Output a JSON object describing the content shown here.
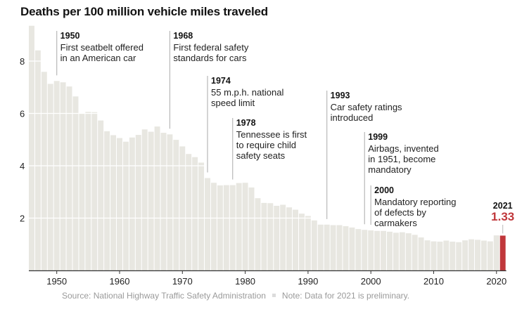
{
  "chart_data": {
    "type": "bar",
    "title": "Deaths per 100 million vehicle miles traveled",
    "xlabel": "",
    "ylabel": "",
    "ylim": [
      0,
      9.35
    ],
    "yticks": [
      2,
      4,
      6,
      8
    ],
    "xticks": [
      1950,
      1960,
      1970,
      1980,
      1990,
      2000,
      2010,
      2020
    ],
    "grid": true,
    "categories": [
      1946,
      1947,
      1948,
      1949,
      1950,
      1951,
      1952,
      1953,
      1954,
      1955,
      1956,
      1957,
      1958,
      1959,
      1960,
      1961,
      1962,
      1963,
      1964,
      1965,
      1966,
      1967,
      1968,
      1969,
      1970,
      1971,
      1972,
      1973,
      1974,
      1975,
      1976,
      1977,
      1978,
      1979,
      1980,
      1981,
      1982,
      1983,
      1984,
      1985,
      1986,
      1987,
      1988,
      1989,
      1990,
      1991,
      1992,
      1993,
      1994,
      1995,
      1996,
      1997,
      1998,
      1999,
      2000,
      2001,
      2002,
      2003,
      2004,
      2005,
      2006,
      2007,
      2008,
      2009,
      2010,
      2011,
      2012,
      2013,
      2014,
      2015,
      2016,
      2017,
      2018,
      2019,
      2020,
      2021
    ],
    "values": [
      9.35,
      8.41,
      7.59,
      7.13,
      7.24,
      7.19,
      7.03,
      6.65,
      6.01,
      6.06,
      6.05,
      5.73,
      5.32,
      5.17,
      5.06,
      4.92,
      5.08,
      5.18,
      5.39,
      5.3,
      5.5,
      5.26,
      5.2,
      4.99,
      4.74,
      4.45,
      4.33,
      4.12,
      3.53,
      3.35,
      3.25,
      3.26,
      3.26,
      3.34,
      3.35,
      3.17,
      2.76,
      2.58,
      2.57,
      2.47,
      2.51,
      2.41,
      2.32,
      2.17,
      2.08,
      1.91,
      1.75,
      1.75,
      1.73,
      1.73,
      1.69,
      1.64,
      1.58,
      1.55,
      1.53,
      1.51,
      1.51,
      1.48,
      1.44,
      1.46,
      1.42,
      1.36,
      1.26,
      1.15,
      1.11,
      1.1,
      1.14,
      1.1,
      1.08,
      1.15,
      1.19,
      1.17,
      1.14,
      1.11,
      1.34,
      1.33
    ],
    "highlight": {
      "year": "2021",
      "value": "1.33",
      "color": "#c0373b"
    },
    "bar_color": "#e8e7e1",
    "annotations": [
      {
        "year": 1950,
        "label": "1950",
        "lines": [
          "First seatbelt offered",
          "in an American car"
        ]
      },
      {
        "year": 1968,
        "label": "1968",
        "lines": [
          "First federal safety",
          "standards for cars"
        ]
      },
      {
        "year": 1974,
        "label": "1974",
        "lines": [
          "55 m.p.h. national",
          "speed limit"
        ]
      },
      {
        "year": 1978,
        "label": "1978",
        "lines": [
          "Tennessee is first",
          "to require child",
          "safety seats"
        ]
      },
      {
        "year": 1993,
        "label": "1993",
        "lines": [
          "Car safety ratings",
          "introduced"
        ]
      },
      {
        "year": 1999,
        "label": "1999",
        "lines": [
          "Airbags, invented",
          "in 1951, become",
          "mandatory"
        ]
      },
      {
        "year": 2000,
        "label": "2000",
        "lines": [
          "Mandatory reporting",
          "of defects by",
          "carmakers"
        ]
      }
    ]
  },
  "footer": {
    "source": "Source: National Highway Traffic Safety Administration",
    "note": "Note: Data for 2021 is preliminary."
  }
}
